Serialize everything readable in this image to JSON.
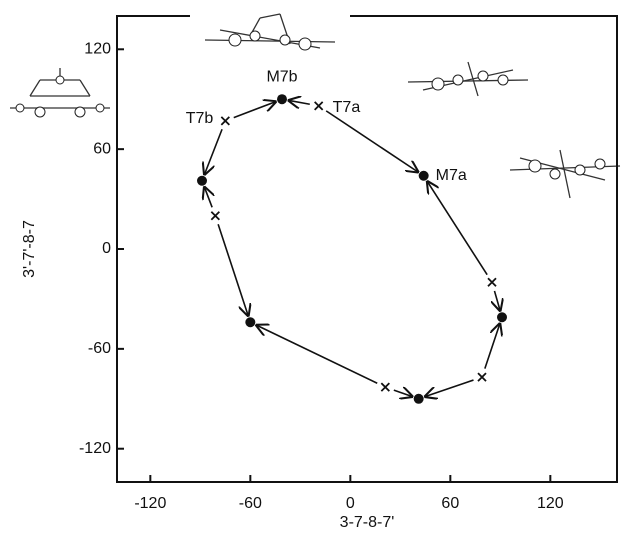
{
  "chart_data": {
    "type": "scatter",
    "x_label": "3-7-8-7'",
    "y_label": "3'-7'-8-7",
    "xlim": [
      -140,
      160
    ],
    "ylim": [
      -140,
      140
    ],
    "xticks": [
      -120,
      -60,
      0,
      60,
      120
    ],
    "yticks": [
      -120,
      -60,
      0,
      60,
      120
    ],
    "series": [
      {
        "marker": "dot",
        "color": "#111111",
        "x": [
          -41,
          44,
          91,
          41,
          -60,
          -89
        ],
        "values": [
          90,
          44,
          -41,
          -90,
          -44,
          41
        ],
        "point_labels": [
          "M7b",
          "M7a",
          null,
          null,
          null,
          null
        ]
      },
      {
        "marker": "x",
        "color": "#111111",
        "x": [
          -19,
          85,
          79,
          21,
          -81,
          -75
        ],
        "values": [
          86,
          -20,
          -77,
          -83,
          20,
          77
        ],
        "point_labels": [
          "T7a",
          null,
          null,
          null,
          null,
          "T7b"
        ]
      }
    ]
  }
}
